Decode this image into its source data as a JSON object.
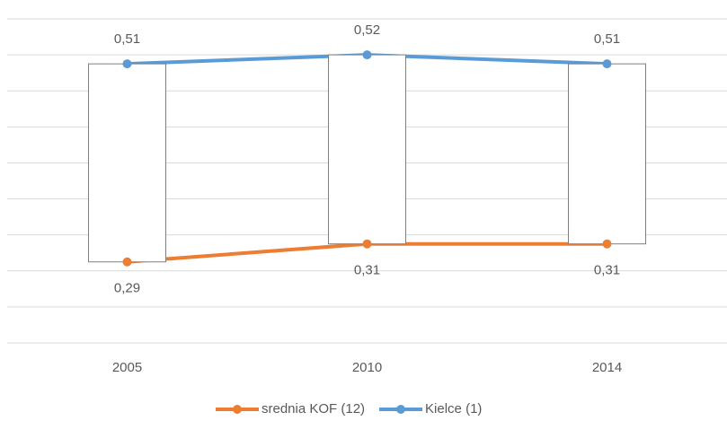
{
  "chart_data": {
    "type": "line",
    "categories": [
      "2005",
      "2010",
      "2014"
    ],
    "series": [
      {
        "name": "srednia KOF (12)",
        "color": "#ed7d31",
        "values": [
          0.29,
          0.31,
          0.31
        ],
        "value_labels": [
          "0,29",
          "0,31",
          "0,31"
        ]
      },
      {
        "name": "Kielce (1)",
        "color": "#5b9bd5",
        "values": [
          0.51,
          0.52,
          0.51
        ],
        "value_labels": [
          "0,51",
          "0,52",
          "0,51"
        ]
      }
    ],
    "ylim": [
      0.2,
      0.56
    ],
    "yticks": [
      0.2,
      0.24,
      0.28,
      0.32,
      0.36,
      0.4,
      0.44,
      0.48,
      0.52,
      0.56
    ],
    "grid": true,
    "up_down_bars": true,
    "legend": "bottom"
  }
}
